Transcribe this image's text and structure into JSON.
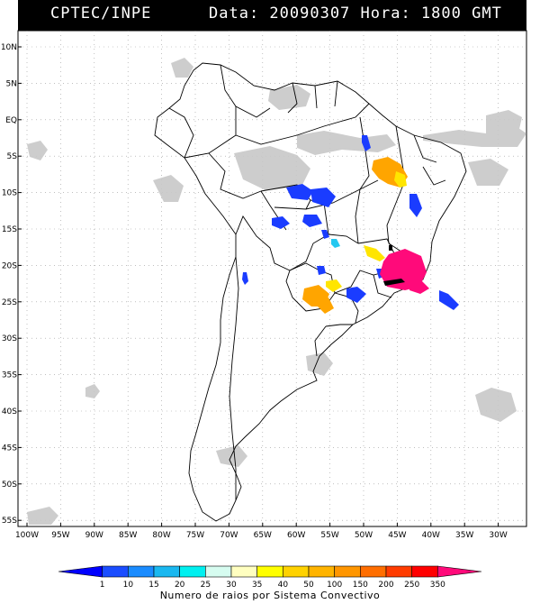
{
  "header": {
    "source": "CPTEC/INPE",
    "date_time": "Data: 20090307 Hora: 1800 GMT"
  },
  "map": {
    "lat_labels": [
      "10N",
      "5N",
      "EQ",
      "5S",
      "10S",
      "15S",
      "20S",
      "25S",
      "30S",
      "35S",
      "40S",
      "45S",
      "50S",
      "55S"
    ],
    "lon_labels": [
      "100W",
      "95W",
      "90W",
      "85W",
      "80W",
      "75W",
      "70W",
      "65W",
      "60W",
      "55W",
      "50W",
      "45W",
      "40W",
      "35W",
      "30W"
    ],
    "storm_colors": {
      "blue": "#1a3cff",
      "orange": "#ffa500",
      "yellow": "#ffe500",
      "magenta": "#ff0a7a",
      "cyan": "#25c8f0",
      "cloud": "#c8c8c8"
    }
  },
  "legend": {
    "ticks": [
      "1",
      "10",
      "15",
      "20",
      "25",
      "30",
      "35",
      "40",
      "50",
      "100",
      "150",
      "200",
      "250",
      "350"
    ],
    "colors": [
      "#0000ff",
      "#1a4dff",
      "#1a8cff",
      "#1ab8f0",
      "#00f0f0",
      "#d6fcf0",
      "#ffffc0",
      "#ffff00",
      "#ffd200",
      "#ffb400",
      "#ff9600",
      "#ff6e00",
      "#ff3c00",
      "#ff0000",
      "#ff0a7a"
    ],
    "caption": "Numero de raios por Sistema Convectivo"
  }
}
